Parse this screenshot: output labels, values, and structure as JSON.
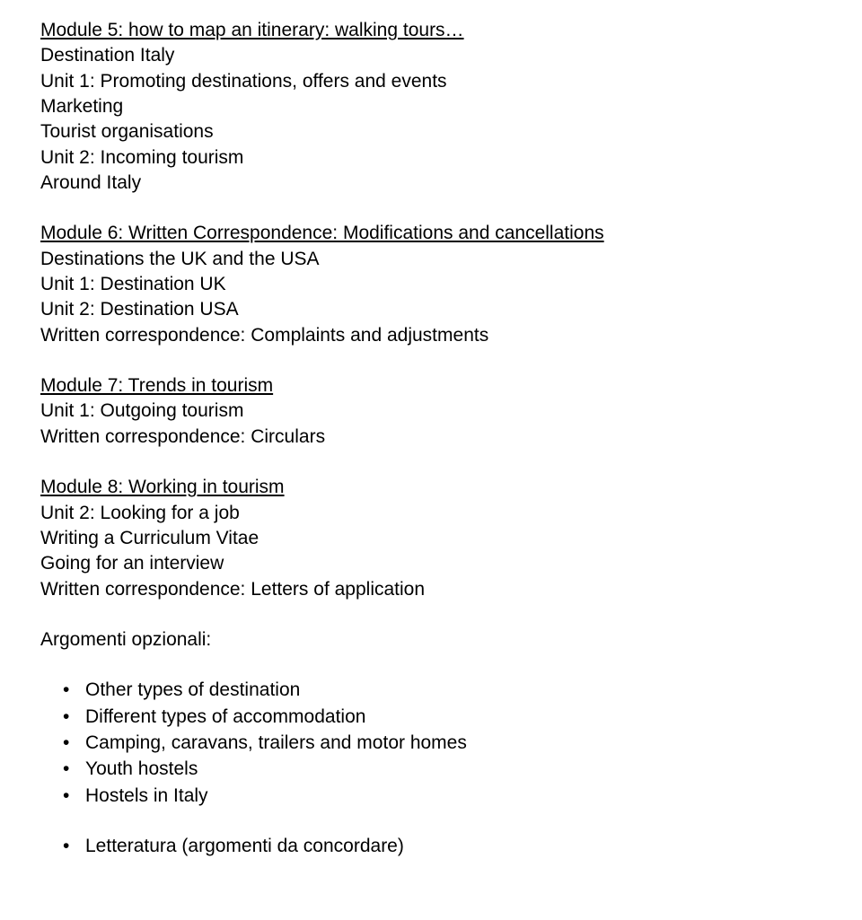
{
  "mod5": {
    "title": "Module 5: how to map an itinerary: walking tours…",
    "l1": "Destination Italy",
    "l2": "Unit 1: Promoting destinations, offers and events",
    "l3": "Marketing",
    "l4": "Tourist organisations",
    "l5": "Unit 2: Incoming tourism",
    "l6": "Around Italy"
  },
  "mod6": {
    "title": "Module 6: Written Correspondence: Modifications and cancellations",
    "l1": "Destinations the UK and the USA",
    "l2": "Unit 1: Destination UK",
    "l3": "Unit 2: Destination USA",
    "l4": "Written correspondence: Complaints and adjustments"
  },
  "mod7": {
    "title": "Module 7: Trends in tourism",
    "l1": "Unit 1: Outgoing tourism",
    "l2": "Written correspondence: Circulars"
  },
  "mod8": {
    "title": "Module 8: Working in tourism",
    "l1": "Unit 2: Looking for a job",
    "l2": "Writing a Curriculum Vitae",
    "l3": "Going for an interview",
    "l4": "Written correspondence: Letters of application"
  },
  "optional_heading": "Argomenti opzionali:",
  "optional_items": {
    "i1": "Other types of destination",
    "i2": "Different types of accommodation",
    "i3": "Camping, caravans, trailers and motor homes",
    "i4": "Youth hostels",
    "i5": "Hostels in Italy"
  },
  "final_item": "Letteratura (argomenti da concordare)"
}
